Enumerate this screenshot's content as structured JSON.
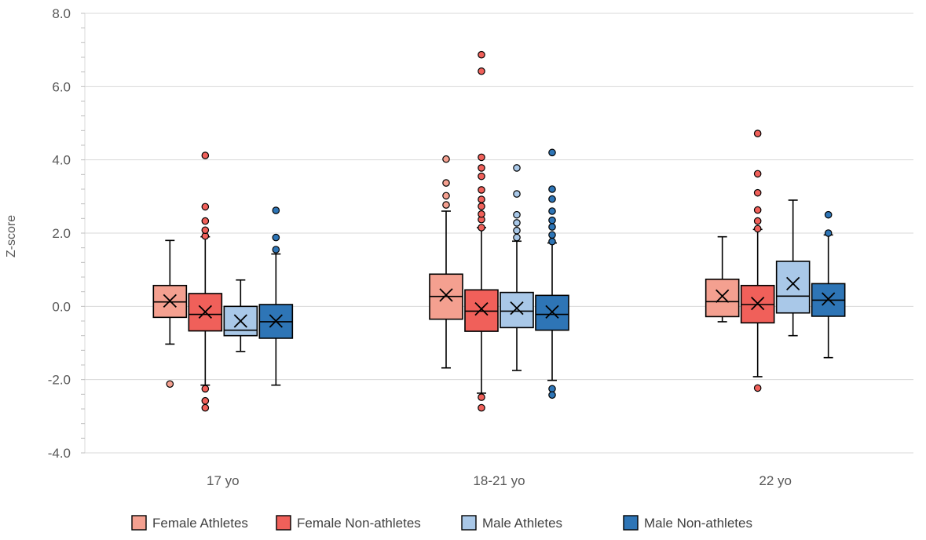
{
  "chart_data": {
    "type": "boxplot",
    "title": "",
    "xlabel": "",
    "ylabel": "Z-score",
    "ylim": [
      -4.0,
      8.0
    ],
    "ytick_labels": [
      "8.0",
      "6.0",
      "4.0",
      "2.0",
      "0.0",
      "-2.0",
      "-4.0"
    ],
    "ytick_values": [
      8,
      6,
      4,
      2,
      0,
      -2,
      -4
    ],
    "grid": "horizontal",
    "legend_position": "bottom",
    "categories": [
      "17 yo",
      "18-21 yo",
      "22 yo"
    ],
    "series": [
      {
        "name": "Female Athletes",
        "color": "#F4A090",
        "boxes": [
          {
            "q1": -0.3,
            "median": 0.12,
            "q3": 0.57,
            "mean": 0.15,
            "whisker_low": -1.03,
            "whisker_high": 1.8,
            "outliers": [
              -2.12
            ]
          },
          {
            "q1": -0.35,
            "median": 0.27,
            "q3": 0.88,
            "mean": 0.31,
            "whisker_low": -1.68,
            "whisker_high": 2.6,
            "outliers": [
              2.77,
              3.02,
              3.37,
              4.02
            ]
          },
          {
            "q1": -0.28,
            "median": 0.13,
            "q3": 0.74,
            "mean": 0.28,
            "whisker_low": -0.42,
            "whisker_high": 1.9,
            "outliers": []
          }
        ]
      },
      {
        "name": "Female Non-athletes",
        "color": "#F0605A",
        "boxes": [
          {
            "q1": -0.67,
            "median": -0.22,
            "q3": 0.35,
            "mean": -0.15,
            "whisker_low": -2.15,
            "whisker_high": 1.9,
            "outliers": [
              1.92,
              2.08,
              2.33,
              2.72,
              4.12,
              -2.25,
              -2.58,
              -2.77
            ]
          },
          {
            "q1": -0.68,
            "median": -0.13,
            "q3": 0.45,
            "mean": -0.07,
            "whisker_low": -2.37,
            "whisker_high": 2.15,
            "outliers": [
              2.15,
              2.37,
              2.52,
              2.73,
              2.92,
              3.18,
              3.55,
              3.78,
              4.07,
              6.42,
              6.87,
              -2.48,
              -2.77
            ]
          },
          {
            "q1": -0.45,
            "median": 0.05,
            "q3": 0.57,
            "mean": 0.08,
            "whisker_low": -1.92,
            "whisker_high": 2.1,
            "outliers": [
              2.12,
              2.33,
              2.63,
              3.1,
              3.62,
              4.72,
              -2.23
            ]
          }
        ]
      },
      {
        "name": "Male Athletes",
        "color": "#A9C8E8",
        "boxes": [
          {
            "q1": -0.8,
            "median": -0.65,
            "q3": 0.0,
            "mean": -0.4,
            "whisker_low": -1.23,
            "whisker_high": 0.72,
            "outliers": []
          },
          {
            "q1": -0.58,
            "median": -0.13,
            "q3": 0.38,
            "mean": -0.05,
            "whisker_low": -1.75,
            "whisker_high": 1.78,
            "outliers": [
              1.88,
              2.07,
              2.28,
              2.5,
              3.07,
              3.78
            ]
          },
          {
            "q1": -0.18,
            "median": 0.28,
            "q3": 1.23,
            "mean": 0.62,
            "whisker_low": -0.8,
            "whisker_high": 2.9,
            "outliers": []
          }
        ]
      },
      {
        "name": "Male Non-athletes",
        "color": "#2E75B6",
        "boxes": [
          {
            "q1": -0.87,
            "median": -0.42,
            "q3": 0.05,
            "mean": -0.4,
            "whisker_low": -2.15,
            "whisker_high": 1.43,
            "outliers": [
              1.55,
              1.88,
              2.62
            ]
          },
          {
            "q1": -0.65,
            "median": -0.22,
            "q3": 0.3,
            "mean": -0.15,
            "whisker_low": -2.02,
            "whisker_high": 1.73,
            "outliers": [
              1.77,
              1.95,
              2.17,
              2.35,
              2.6,
              2.93,
              3.2,
              4.2,
              -2.25,
              -2.42
            ]
          },
          {
            "q1": -0.27,
            "median": 0.17,
            "q3": 0.62,
            "mean": 0.2,
            "whisker_low": -1.4,
            "whisker_high": 1.95,
            "outliers": [
              2.0,
              2.5
            ]
          }
        ]
      }
    ]
  }
}
